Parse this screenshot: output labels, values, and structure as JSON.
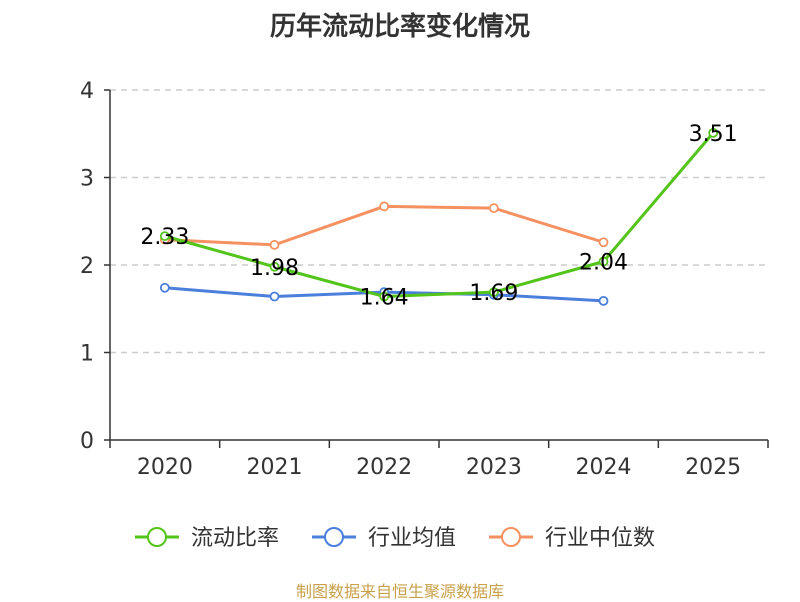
{
  "chart_data": {
    "type": "line",
    "title": "历年流动比率变化情况",
    "categories": [
      "2020",
      "2021",
      "2022",
      "2023",
      "2024",
      "2025"
    ],
    "ylim": [
      0,
      4
    ],
    "yticks": [
      0,
      1,
      2,
      3,
      4
    ],
    "grid": true,
    "legend_position": "bottom",
    "series": [
      {
        "name": "流动比率",
        "color": "#52c41a",
        "values": [
          2.33,
          1.98,
          1.64,
          1.69,
          2.04,
          3.51
        ],
        "labels": [
          "2.33",
          "1.98",
          "1.64",
          "1.69",
          "2.04",
          "3.51"
        ]
      },
      {
        "name": "行业均值",
        "color": "#4a7fdc",
        "values": [
          1.74,
          1.64,
          1.69,
          1.66,
          1.59,
          null
        ]
      },
      {
        "name": "行业中位数",
        "color": "#f59160",
        "values": [
          2.29,
          2.23,
          2.67,
          2.65,
          2.26,
          null
        ]
      }
    ],
    "source": "制图数据来自恒生聚源数据库"
  }
}
